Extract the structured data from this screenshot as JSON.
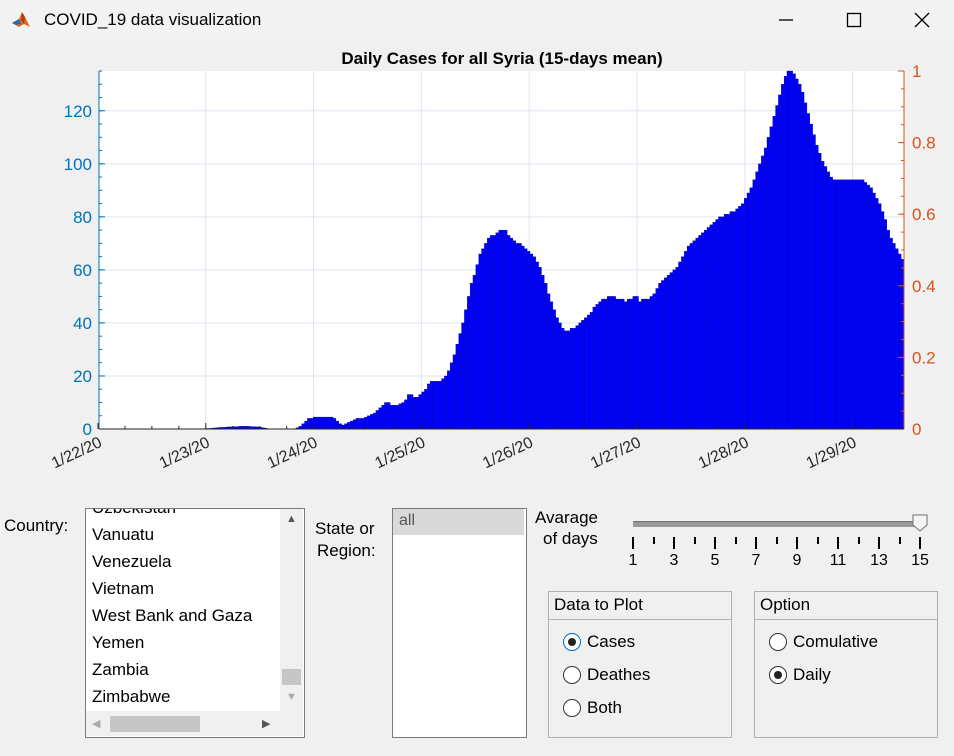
{
  "window": {
    "title": "COVID_19 data visualization",
    "icon": "matlab-icon"
  },
  "chart_data": {
    "type": "bar",
    "title": "Daily Cases for all Syria (15-days mean)",
    "xlabel": "",
    "ylabel": "",
    "x_tick_labels": [
      "1/22/20",
      "1/23/20",
      "1/24/20",
      "1/25/20",
      "1/26/20",
      "1/27/20",
      "1/28/20",
      "1/29/20"
    ],
    "ylim": [
      0,
      135
    ],
    "y_ticks": [
      0,
      20,
      40,
      60,
      80,
      100,
      120
    ],
    "y2lim": [
      0,
      1
    ],
    "y2_ticks": [
      "0",
      "0.2",
      "0.4",
      "0.6",
      "0.8",
      "1"
    ],
    "grid": true,
    "bar_color": "#0000ff",
    "left_axis_color": "#0072bd",
    "right_axis_color": "#d95319",
    "values": [
      0,
      0,
      0,
      0,
      0,
      0,
      0,
      0,
      0,
      0,
      0,
      0,
      0,
      0,
      0,
      0,
      0,
      0,
      0,
      0,
      0,
      0,
      0,
      0,
      0,
      0,
      0,
      0,
      0,
      0,
      0,
      0,
      0,
      0,
      0,
      0.1,
      0.1,
      0.2,
      0.2,
      0.3,
      0.4,
      0.5,
      0.6,
      0.6,
      0.7,
      0.8,
      0.8,
      0.9,
      0.9,
      1,
      1,
      1,
      1,
      0.9,
      0.9,
      0.8,
      0.7,
      0.5,
      0.3,
      0.1,
      0,
      0,
      0,
      0,
      0,
      0,
      0,
      0,
      0,
      0.5,
      1,
      2,
      3,
      4,
      4,
      4.5,
      4.5,
      4.5,
      4.5,
      4.5,
      4.5,
      4.5,
      4,
      3,
      2,
      1.5,
      2,
      2.5,
      3,
      3.5,
      4,
      4,
      4,
      4.5,
      5,
      5.5,
      6,
      7,
      8,
      9,
      10,
      10,
      9,
      9,
      9,
      9.5,
      10,
      11,
      13,
      13,
      12,
      12,
      13,
      14,
      15,
      17,
      18,
      18,
      18,
      18,
      19,
      20,
      22,
      25,
      28,
      32,
      36,
      40,
      45,
      50,
      55,
      58,
      62,
      66,
      68,
      70,
      72,
      73,
      73,
      74,
      75,
      75,
      75,
      73,
      72,
      71,
      70,
      70,
      69,
      68,
      67,
      66,
      65,
      63,
      61,
      58,
      55,
      51,
      48,
      45,
      42,
      40,
      38,
      37,
      37,
      38,
      38,
      39,
      40,
      41,
      42,
      43,
      44,
      46,
      47,
      48,
      49,
      49,
      50,
      50,
      50,
      49,
      49,
      49,
      48,
      49,
      49,
      50,
      50,
      48,
      49,
      49,
      49,
      50,
      51,
      53,
      55,
      56,
      57,
      58,
      59,
      60,
      61,
      63,
      65,
      67,
      69,
      70,
      71,
      72,
      73,
      74,
      75,
      76,
      77,
      78,
      79,
      80,
      80,
      81,
      81,
      82,
      82,
      83,
      84,
      85,
      87,
      89,
      91,
      94,
      97,
      100,
      103,
      106,
      110,
      114,
      118,
      122,
      126,
      130,
      133,
      135,
      135,
      134,
      132,
      130,
      127,
      123,
      119,
      115,
      111,
      107,
      104,
      101,
      99,
      97,
      95,
      94,
      94,
      94,
      94,
      94,
      94,
      94,
      94,
      94,
      94,
      94,
      93,
      92,
      91,
      89,
      87,
      85,
      82,
      79,
      75,
      72,
      70,
      68,
      66,
      64
    ]
  },
  "controls": {
    "country_label": "Country:",
    "countries": [
      "Uzbekistan",
      "Vanuatu",
      "Venezuela",
      "Vietnam",
      "West Bank and Gaza",
      "Yemen",
      "Zambia",
      "Zimbabwe"
    ],
    "state_label_1": "State or",
    "state_label_2": "Region:",
    "states": [
      "all"
    ],
    "average_label_1": "Avarage",
    "average_label_2": "of days",
    "slider": {
      "min": 1,
      "max": 15,
      "value": 15,
      "tick_labels": [
        "1",
        "3",
        "5",
        "7",
        "9",
        "11",
        "13",
        "15"
      ]
    },
    "data_panel": {
      "title": "Data to Plot",
      "options": [
        "Cases",
        "Deathes",
        "Both"
      ],
      "selected": "Cases"
    },
    "option_panel": {
      "title": "Option",
      "options": [
        "Comulative",
        "Daily"
      ],
      "selected": "Daily"
    }
  }
}
